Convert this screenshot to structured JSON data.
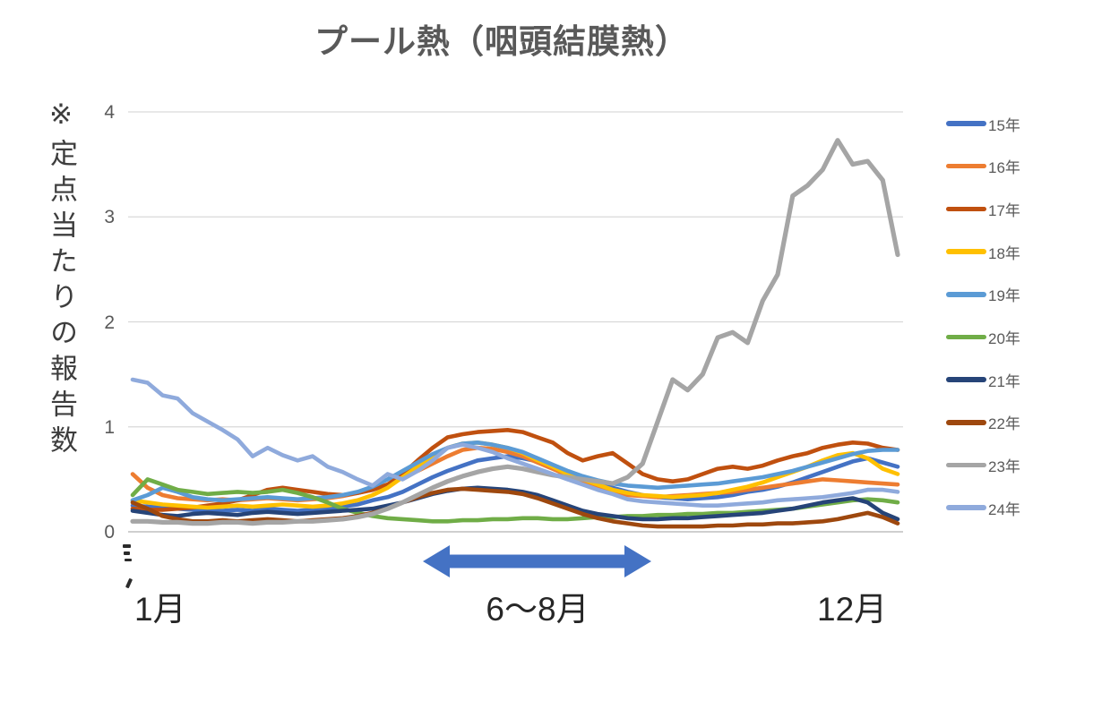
{
  "title": "プール熱（咽頭結膜熱）",
  "y_axis": {
    "title": "※定点当たりの報告数",
    "ticks": [
      "0",
      "1",
      "2",
      "3",
      "4"
    ]
  },
  "x_axis": {
    "labels": [
      "1月",
      "6〜8月",
      "12月"
    ]
  },
  "annotation": {
    "label": "6〜8月",
    "shape": "double-headed-arrow",
    "color": "#4472C4"
  },
  "colors": {
    "title_text": "#595959",
    "axis_text": "#595959",
    "x_label_text": "#262626",
    "gridline": "#D9D9D9",
    "axis_line": "#BFBFBF",
    "background": "#FFFFFF"
  },
  "chart_data": {
    "type": "line",
    "title": "プール熱（咽頭結膜熱）",
    "ylabel": "※定点当たりの報告数",
    "xlabel": "",
    "x_ticks_visible": [
      "1月",
      "6〜8月",
      "12月"
    ],
    "x_range_weeks": [
      1,
      52
    ],
    "ylim": [
      0,
      4
    ],
    "yticks": [
      0,
      1,
      2,
      3,
      4
    ],
    "grid": "horizontal",
    "legend_position": "right",
    "series": [
      {
        "name": "15年",
        "color": "#4472C4",
        "values": [
          0.25,
          0.24,
          0.23,
          0.22,
          0.21,
          0.2,
          0.2,
          0.21,
          0.2,
          0.22,
          0.21,
          0.2,
          0.21,
          0.22,
          0.24,
          0.26,
          0.3,
          0.33,
          0.38,
          0.45,
          0.52,
          0.58,
          0.63,
          0.68,
          0.7,
          0.72,
          0.7,
          0.67,
          0.62,
          0.57,
          0.52,
          0.46,
          0.42,
          0.38,
          0.35,
          0.33,
          0.32,
          0.31,
          0.32,
          0.33,
          0.35,
          0.38,
          0.4,
          0.43,
          0.47,
          0.52,
          0.57,
          0.62,
          0.67,
          0.7,
          0.66,
          0.62
        ]
      },
      {
        "name": "16年",
        "color": "#ED7D31",
        "values": [
          0.55,
          0.42,
          0.35,
          0.32,
          0.31,
          0.3,
          0.31,
          0.3,
          0.31,
          0.32,
          0.31,
          0.3,
          0.31,
          0.32,
          0.34,
          0.37,
          0.4,
          0.45,
          0.52,
          0.58,
          0.65,
          0.72,
          0.78,
          0.8,
          0.79,
          0.76,
          0.72,
          0.66,
          0.6,
          0.54,
          0.48,
          0.43,
          0.38,
          0.35,
          0.34,
          0.33,
          0.34,
          0.35,
          0.36,
          0.37,
          0.38,
          0.4,
          0.42,
          0.44,
          0.46,
          0.48,
          0.5,
          0.49,
          0.48,
          0.47,
          0.46,
          0.45
        ]
      },
      {
        "name": "17年",
        "color": "#C0500F",
        "values": [
          0.22,
          0.21,
          0.21,
          0.22,
          0.23,
          0.25,
          0.27,
          0.3,
          0.35,
          0.4,
          0.42,
          0.4,
          0.38,
          0.36,
          0.35,
          0.37,
          0.4,
          0.45,
          0.55,
          0.68,
          0.8,
          0.9,
          0.93,
          0.95,
          0.96,
          0.97,
          0.95,
          0.9,
          0.85,
          0.75,
          0.68,
          0.72,
          0.75,
          0.65,
          0.55,
          0.5,
          0.48,
          0.5,
          0.55,
          0.6,
          0.62,
          0.6,
          0.63,
          0.68,
          0.72,
          0.75,
          0.8,
          0.83,
          0.85,
          0.84,
          0.8,
          0.78
        ]
      },
      {
        "name": "18年",
        "color": "#FFC000",
        "values": [
          0.3,
          0.28,
          0.26,
          0.25,
          0.24,
          0.23,
          0.24,
          0.25,
          0.24,
          0.25,
          0.26,
          0.25,
          0.24,
          0.25,
          0.27,
          0.3,
          0.35,
          0.42,
          0.52,
          0.62,
          0.72,
          0.8,
          0.84,
          0.85,
          0.83,
          0.8,
          0.75,
          0.68,
          0.62,
          0.55,
          0.5,
          0.45,
          0.4,
          0.37,
          0.35,
          0.34,
          0.33,
          0.34,
          0.35,
          0.37,
          0.4,
          0.43,
          0.47,
          0.52,
          0.57,
          0.62,
          0.68,
          0.73,
          0.75,
          0.7,
          0.6,
          0.55
        ]
      },
      {
        "name": "19年",
        "color": "#5B9BD5",
        "values": [
          0.3,
          0.35,
          0.42,
          0.38,
          0.33,
          0.31,
          0.3,
          0.31,
          0.32,
          0.33,
          0.32,
          0.31,
          0.32,
          0.33,
          0.35,
          0.38,
          0.43,
          0.5,
          0.58,
          0.66,
          0.74,
          0.8,
          0.84,
          0.85,
          0.83,
          0.8,
          0.76,
          0.7,
          0.64,
          0.58,
          0.53,
          0.49,
          0.46,
          0.44,
          0.43,
          0.42,
          0.43,
          0.44,
          0.45,
          0.46,
          0.48,
          0.5,
          0.52,
          0.55,
          0.58,
          0.62,
          0.66,
          0.7,
          0.74,
          0.77,
          0.78,
          0.78
        ]
      },
      {
        "name": "20年",
        "color": "#70AD47",
        "values": [
          0.35,
          0.5,
          0.45,
          0.4,
          0.38,
          0.36,
          0.37,
          0.38,
          0.37,
          0.38,
          0.4,
          0.37,
          0.33,
          0.28,
          0.22,
          0.18,
          0.15,
          0.13,
          0.12,
          0.11,
          0.1,
          0.1,
          0.11,
          0.11,
          0.12,
          0.12,
          0.13,
          0.13,
          0.12,
          0.12,
          0.13,
          0.14,
          0.14,
          0.15,
          0.15,
          0.16,
          0.16,
          0.17,
          0.17,
          0.18,
          0.18,
          0.19,
          0.2,
          0.21,
          0.22,
          0.24,
          0.26,
          0.28,
          0.3,
          0.31,
          0.3,
          0.28
        ]
      },
      {
        "name": "21年",
        "color": "#264478",
        "values": [
          0.2,
          0.18,
          0.16,
          0.15,
          0.17,
          0.18,
          0.17,
          0.16,
          0.18,
          0.19,
          0.18,
          0.17,
          0.18,
          0.19,
          0.2,
          0.21,
          0.22,
          0.25,
          0.28,
          0.32,
          0.36,
          0.39,
          0.41,
          0.42,
          0.41,
          0.4,
          0.38,
          0.35,
          0.3,
          0.25,
          0.2,
          0.17,
          0.15,
          0.13,
          0.12,
          0.12,
          0.13,
          0.13,
          0.14,
          0.15,
          0.16,
          0.17,
          0.18,
          0.2,
          0.22,
          0.25,
          0.28,
          0.3,
          0.32,
          0.28,
          0.18,
          0.12
        ]
      },
      {
        "name": "22年",
        "color": "#9E480E",
        "values": [
          0.28,
          0.22,
          0.15,
          0.12,
          0.1,
          0.1,
          0.11,
          0.1,
          0.11,
          0.12,
          0.11,
          0.1,
          0.11,
          0.12,
          0.13,
          0.15,
          0.18,
          0.22,
          0.28,
          0.33,
          0.37,
          0.4,
          0.41,
          0.4,
          0.39,
          0.38,
          0.36,
          0.32,
          0.27,
          0.22,
          0.17,
          0.13,
          0.1,
          0.08,
          0.06,
          0.05,
          0.05,
          0.05,
          0.05,
          0.06,
          0.06,
          0.07,
          0.07,
          0.08,
          0.08,
          0.09,
          0.1,
          0.12,
          0.15,
          0.18,
          0.14,
          0.08
        ]
      },
      {
        "name": "23年",
        "color": "#A5A5A5",
        "values": [
          0.1,
          0.1,
          0.09,
          0.09,
          0.08,
          0.08,
          0.09,
          0.09,
          0.08,
          0.09,
          0.09,
          0.1,
          0.1,
          0.11,
          0.12,
          0.14,
          0.17,
          0.22,
          0.28,
          0.35,
          0.42,
          0.48,
          0.53,
          0.57,
          0.6,
          0.62,
          0.6,
          0.57,
          0.54,
          0.52,
          0.5,
          0.48,
          0.46,
          0.52,
          0.65,
          1.05,
          1.45,
          1.35,
          1.5,
          1.85,
          1.9,
          1.8,
          2.2,
          2.45,
          3.2,
          3.3,
          3.45,
          3.73,
          3.5,
          3.53,
          3.35,
          2.64
        ]
      },
      {
        "name": "24年",
        "color": "#8FAADC",
        "values": [
          1.45,
          1.42,
          1.3,
          1.27,
          1.13,
          1.05,
          0.97,
          0.88,
          0.72,
          0.8,
          0.73,
          0.68,
          0.72,
          0.62,
          0.57,
          0.5,
          0.44,
          0.55,
          0.5,
          0.58,
          0.68,
          0.8,
          0.83,
          0.8,
          0.76,
          0.7,
          0.65,
          0.6,
          0.55,
          0.5,
          0.45,
          0.4,
          0.36,
          0.31,
          0.29,
          0.28,
          0.27,
          0.26,
          0.25,
          0.25,
          0.26,
          0.27,
          0.28,
          0.3,
          0.31,
          0.32,
          0.33,
          0.35,
          0.37,
          0.4,
          0.4,
          0.38
        ]
      }
    ]
  }
}
